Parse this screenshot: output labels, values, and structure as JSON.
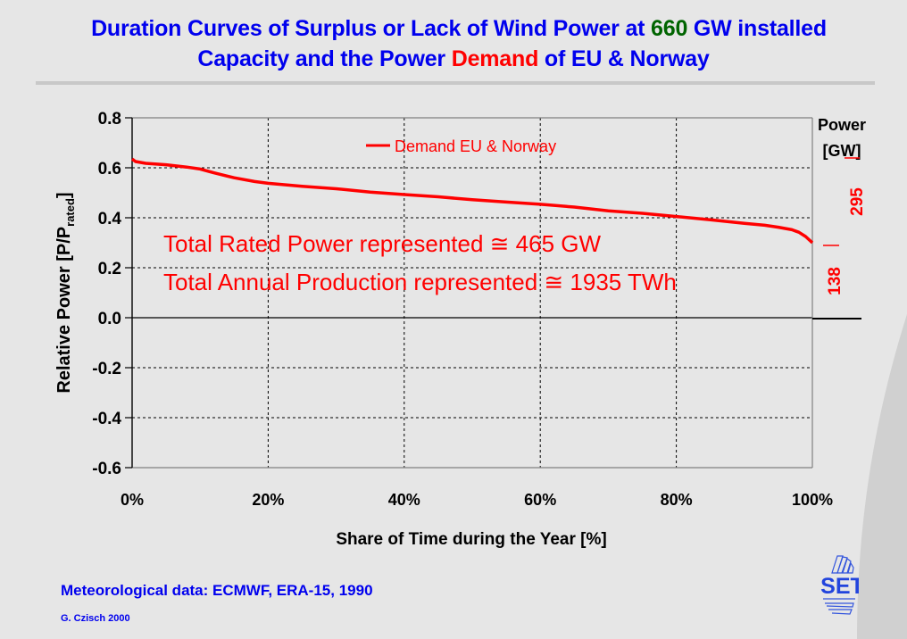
{
  "title": {
    "line1_part1": "Duration Curves of  Surplus or Lack of  Wind Power at ",
    "line1_highlight": "660",
    "line1_part2": " GW installed",
    "line2_part1": "Capacity and the Power ",
    "line2_highlight": "Demand",
    "line2_part2": " of EU & Norway"
  },
  "colors": {
    "title": "#0000ee",
    "highlight_green": "#006400",
    "demand_red": "#ff0000",
    "background_light": "#e6e6e6",
    "background_dark": "#d0d0d0"
  },
  "annotations": {
    "rated_power": "Total Rated Power represented ≅ 465 GW",
    "annual_production": "Total Annual Production represented ≅ 1935 TWh"
  },
  "secondary_axis": {
    "label_line1": "Power",
    "label_line2": "[GW]",
    "tick_high": "295",
    "tick_low": "138"
  },
  "footer": {
    "source": "Meteorological data: ECMWF, ERA-15, 1990",
    "author": "G. Czisch 2000"
  },
  "logo": {
    "text": "ISET"
  },
  "chart_data": {
    "type": "line",
    "title": "Duration Curves of Surplus or Lack of Wind Power at 660 GW installed Capacity and the Power Demand of EU & Norway",
    "xlabel": "Share of Time during the Year [%]",
    "ylabel": "Relative Power [P/P",
    "ylabel_sub": "rated",
    "ylabel_end": "]",
    "xlim": [
      0,
      100
    ],
    "ylim": [
      -0.6,
      0.8
    ],
    "xticks": [
      0,
      20,
      40,
      60,
      80,
      100
    ],
    "xtick_labels": [
      "0%",
      "20%",
      "40%",
      "60%",
      "80%",
      "100%"
    ],
    "yticks": [
      0.8,
      0.6,
      0.4,
      0.2,
      0.0,
      -0.2,
      -0.4,
      -0.6
    ],
    "ytick_labels": [
      "0.8",
      "0.6",
      "0.4",
      "0.2",
      "0.0",
      "-0.2",
      "-0.4",
      "-0.6"
    ],
    "grid": true,
    "legend": {
      "position": "top-center",
      "entries": [
        "Demand EU & Norway"
      ]
    },
    "series": [
      {
        "name": "Demand EU & Norway",
        "color": "#ff0000",
        "x": [
          0,
          0.5,
          2,
          5,
          8,
          10,
          12,
          15,
          18,
          20,
          25,
          30,
          35,
          40,
          45,
          50,
          55,
          60,
          65,
          70,
          75,
          80,
          85,
          90,
          93,
          95,
          97,
          98,
          99,
          100
        ],
        "y": [
          0.635,
          0.625,
          0.618,
          0.612,
          0.603,
          0.595,
          0.58,
          0.56,
          0.545,
          0.538,
          0.526,
          0.516,
          0.503,
          0.493,
          0.484,
          0.472,
          0.463,
          0.454,
          0.443,
          0.428,
          0.418,
          0.405,
          0.392,
          0.378,
          0.37,
          0.362,
          0.352,
          0.342,
          0.325,
          0.3
        ]
      }
    ]
  }
}
